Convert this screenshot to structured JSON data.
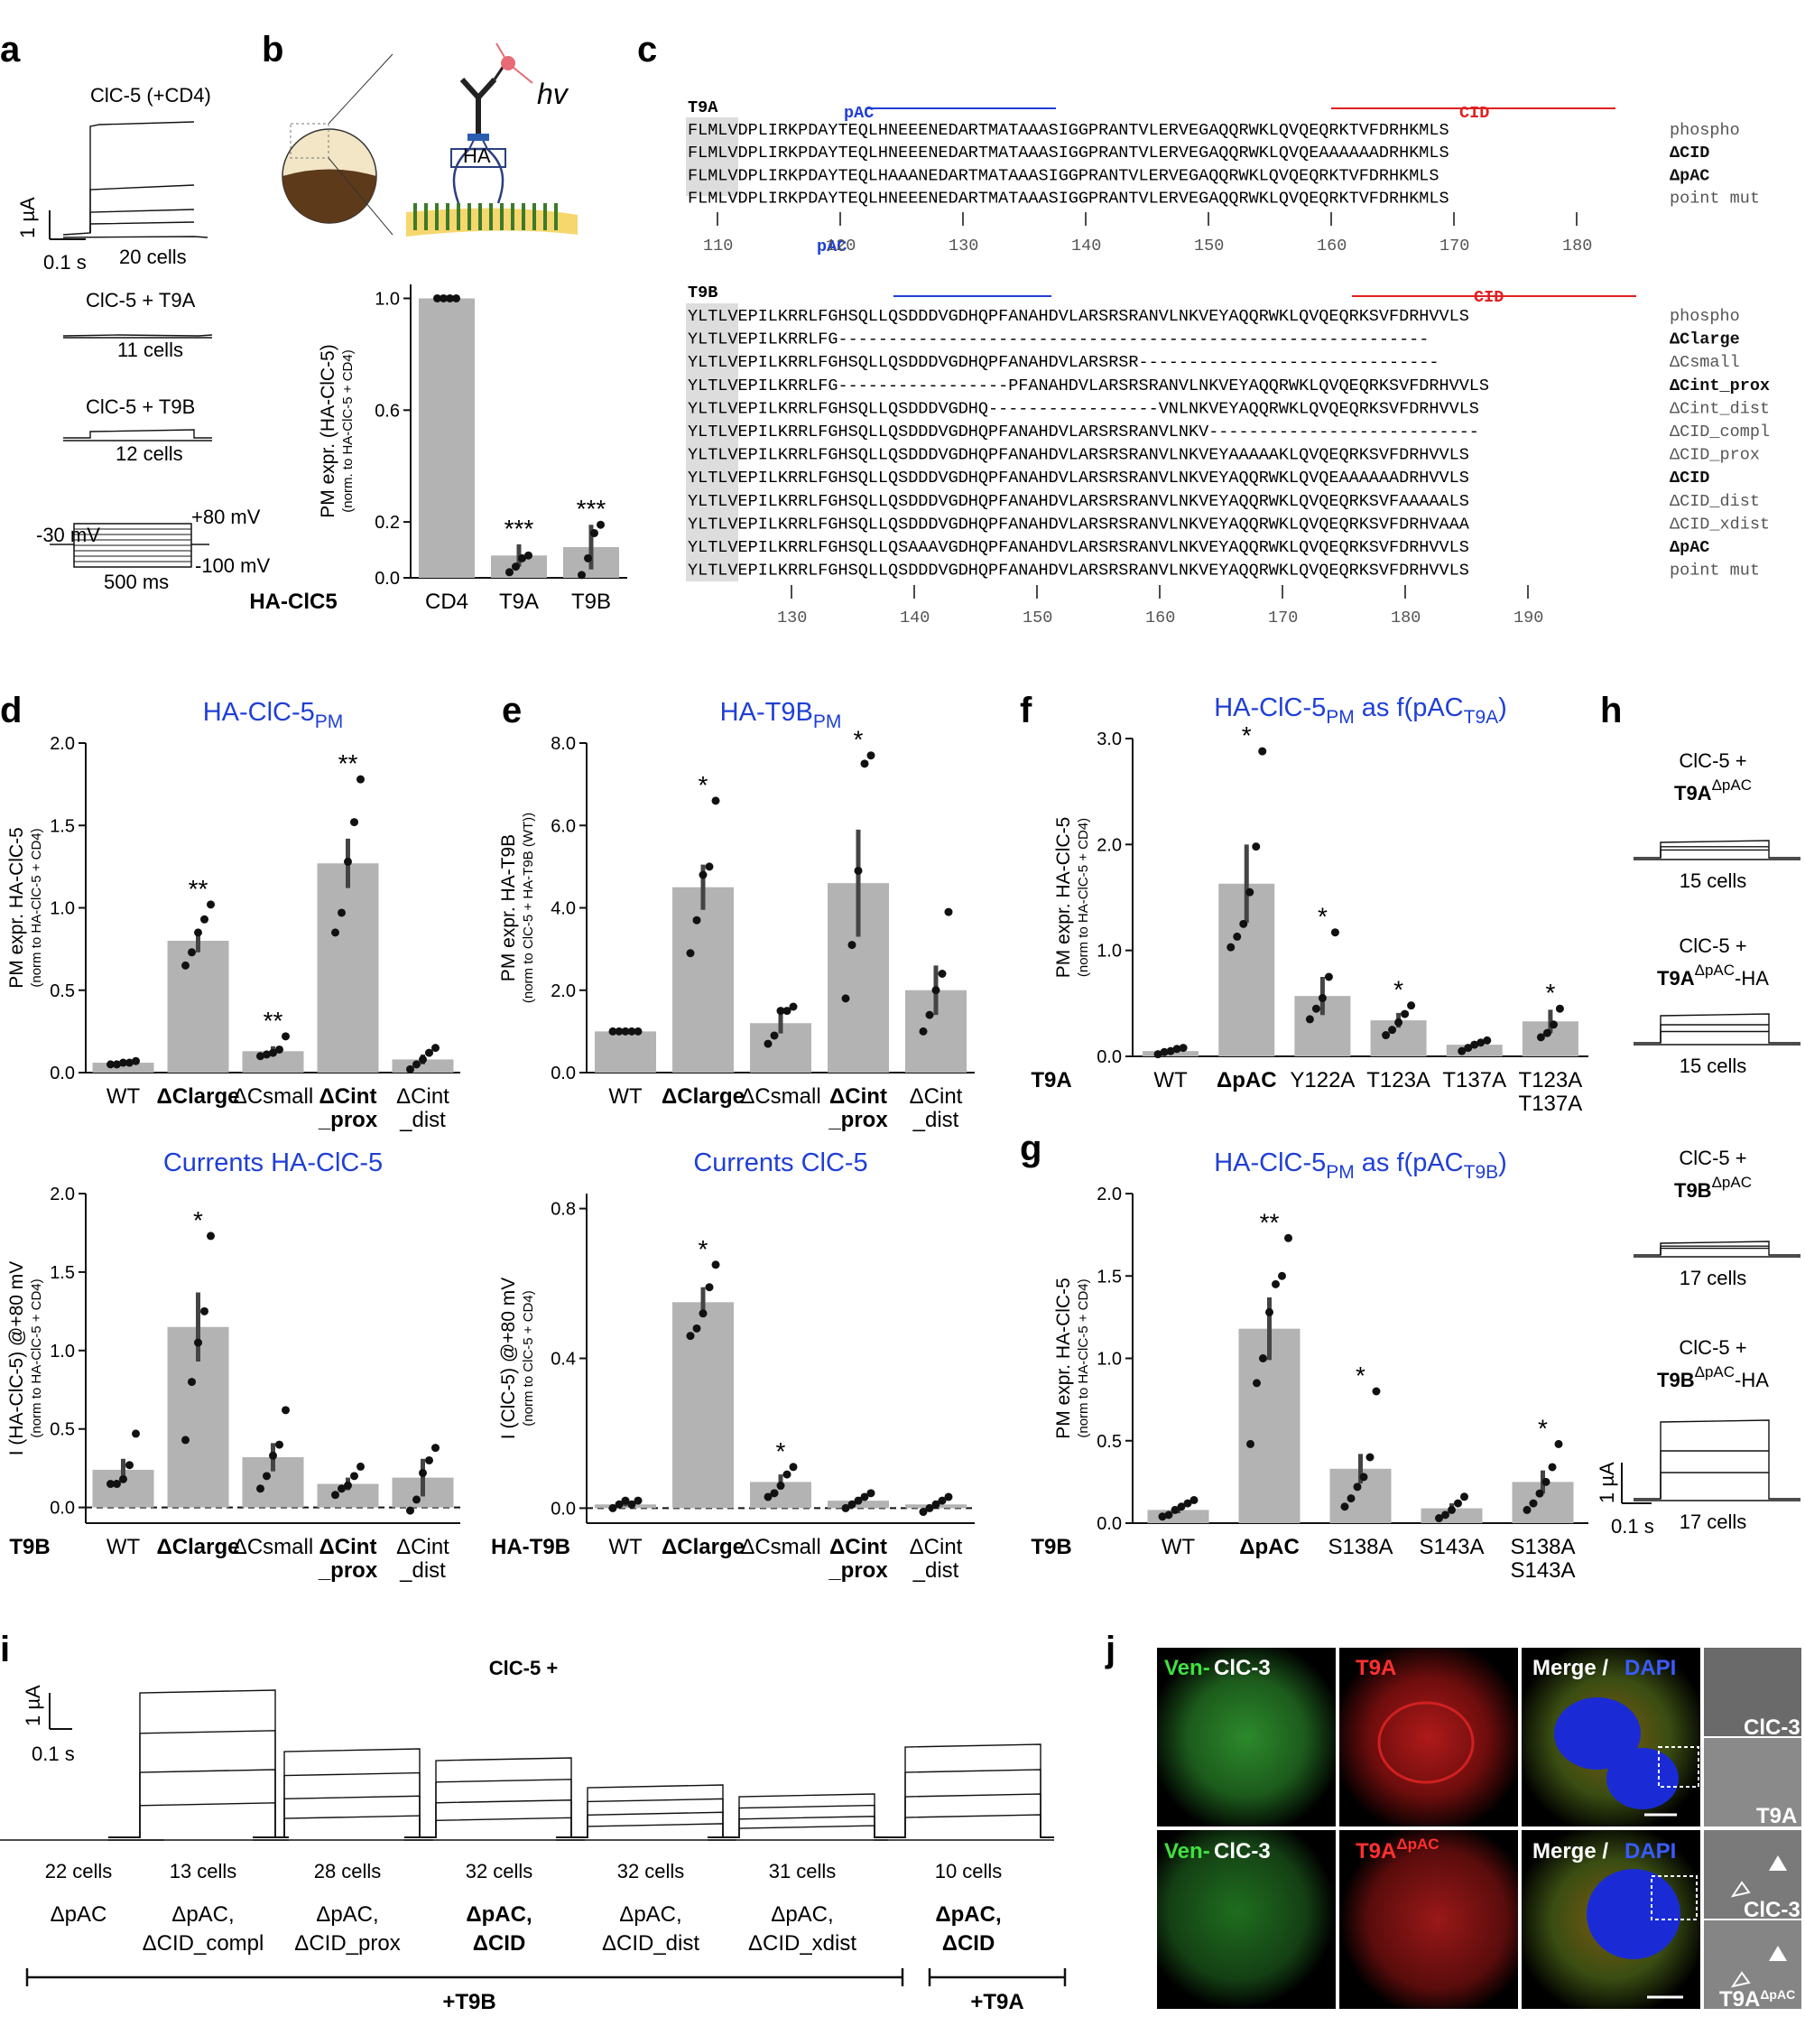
{
  "panel_labels": {
    "a": "a",
    "b": "b",
    "c": "c",
    "d": "d",
    "e": "e",
    "f": "f",
    "g": "g",
    "h": "h",
    "i": "i",
    "j": "j"
  },
  "panel_a": {
    "groups": [
      {
        "label": "ClC-5 (+CD4)",
        "cells": "20 cells"
      },
      {
        "label": "ClC-5 + T9A",
        "cells": "11 cells"
      },
      {
        "label": "ClC-5 + T9B",
        "cells": "12 cells"
      }
    ],
    "scale": {
      "y": "1 µA",
      "x": "0.1 s"
    },
    "protocol": {
      "hold": "-30 mV",
      "top": "+80 mV",
      "bottom": "-100 mV",
      "duration": "500 ms"
    }
  },
  "panel_b": {
    "schematic": {
      "tag": "HA",
      "light": "hv"
    }
  },
  "panel_c": {
    "t9a": {
      "name": "T9A",
      "pac": "pAC",
      "cid": "CID",
      "rows": [
        {
          "seq": "FLMLVDPLIRKPDAYTEQLHNEEENEDARTMATAAASIGGPRANTVLERVEGAQQRWKLQVQEQRKTVFDRHKMLS",
          "label": "phospho"
        },
        {
          "seq": "FLMLVDPLIRKPDAYTEQLHNEEENEDARTMATAAASIGGPRANTVLERVEGAQQRWKLQVQEAAAAAADRHKMLS",
          "label": "ΔCID"
        },
        {
          "seq": "FLMLVDPLIRKPDAYTEQLHAAANEDARTMATAAASIGGPRANTVLERVEGAQQRWKLQVQEQRKTVFDRHKMLS",
          "label": "ΔpAC"
        },
        {
          "seq": "FLMLVDPLIRKPDAYTEQLHNEEENEDARTMATAAASIGGPRANTVLERVEGAQQRWKLQVQEQRKTVFDRHKMLS",
          "label": "point mut"
        }
      ],
      "ticks": [
        "110",
        "120",
        "130",
        "140",
        "150",
        "160",
        "170",
        "180"
      ]
    },
    "t9b": {
      "name": "T9B",
      "pac": "pAC",
      "cid": "CID",
      "rows": [
        {
          "seq": "YLTLVEPILKRRLFGHSQLLQSDDDVGDHQPFANAHDVLARSRSRANVLNKVEYAQQRWKLQVQEQRKSVFDRHVVLS",
          "label": "phospho"
        },
        {
          "seq": "YLTLVEPILKRRLFG-----------------------------------------------------------",
          "label": "ΔClarge"
        },
        {
          "seq": "YLTLVEPILKRRLFGHSQLLQSDDDVGDHQPFANAHDVLARSRSR------------------------------",
          "label": "ΔCsmall"
        },
        {
          "seq": "YLTLVEPILKRRLFG-----------------PFANAHDVLARSRSRANVLNKVEYAQQRWKLQVQEQRKSVFDRHVVLS",
          "label": "ΔCint_prox"
        },
        {
          "seq": "YLTLVEPILKRRLFGHSQLLQSDDDVGDHQ-----------------VNLNKVEYAQQRWKLQVQEQRKSVFDRHVVLS",
          "label": "ΔCint_dist"
        },
        {
          "seq": "YLTLVEPILKRRLFGHSQLLQSDDDVGDHQPFANAHDVLARSRSRANVLNKV---------------------------",
          "label": "ΔCID_compl"
        },
        {
          "seq": "YLTLVEPILKRRLFGHSQLLQSDDDVGDHQPFANAHDVLARSRSRANVLNKVEYAAAAAKLQVQEQRKSVFDRHVVLS",
          "label": "ΔCID_prox"
        },
        {
          "seq": "YLTLVEPILKRRLFGHSQLLQSDDDVGDHQPFANAHDVLARSRSRANVLNKVEYAQQRWKLQVQEAAAAAADRHVVLS",
          "label": "ΔCID"
        },
        {
          "seq": "YLTLVEPILKRRLFGHSQLLQSDDDVGDHQPFANAHDVLARSRSRANVLNKVEYAQQRWKLQVQEQRKSVFAAAAALS",
          "label": "ΔCID_dist"
        },
        {
          "seq": "YLTLVEPILKRRLFGHSQLLQSDDDVGDHQPFANAHDVLARSRSRANVLNKVEYAQQRWKLQVQEQRKSVFDRHVAAA",
          "label": "ΔCID_xdist"
        },
        {
          "seq": "YLTLVEPILKRRLFGHSQLLQSAAAVGDHQPFANAHDVLARSRSRANVLNKVEYAQQRWKLQVQEQRKSVFDRHVVLS",
          "label": "ΔpAC"
        },
        {
          "seq": "YLTLVEPILKRRLFGHSQLLQSDDDVGDHQPFANAHDVLARSRSRANVLNKVEYAQQRWKLQVQEQRKSVFDRHVVLS",
          "label": "point mut"
        }
      ],
      "ticks": [
        "130",
        "140",
        "150",
        "160",
        "170",
        "180",
        "190"
      ]
    }
  },
  "panel_h": {
    "groups": [
      {
        "label_pre": "ClC-5 +",
        "label_t": "T9A",
        "label_sup": "ΔpAC",
        "label_suf": "",
        "cells": "15 cells"
      },
      {
        "label_pre": "ClC-5 +",
        "label_t": "T9A",
        "label_sup": "ΔpAC",
        "label_suf": "-HA",
        "cells": "15 cells"
      },
      {
        "label_pre": "ClC-5 +",
        "label_t": "T9B",
        "label_sup": "ΔpAC",
        "label_suf": "",
        "cells": "17 cells"
      },
      {
        "label_pre": "ClC-5 +",
        "label_t": "T9B",
        "label_sup": "ΔpAC",
        "label_suf": "-HA",
        "cells": "17 cells"
      }
    ],
    "scale": {
      "y": "1 µA",
      "x": "0.1 s"
    }
  },
  "panel_i": {
    "title": "ClC-5 +",
    "scale": {
      "y": "1 µA",
      "x": "0.1 s"
    },
    "groups": [
      {
        "cells": "22 cells",
        "line1": "ΔpAC",
        "line2": "",
        "bold": false
      },
      {
        "cells": "13 cells",
        "line1": "ΔpAC,",
        "line2": "ΔCID_compl",
        "bold": false
      },
      {
        "cells": "28 cells",
        "line1": "ΔpAC,",
        "line2": "ΔCID_prox",
        "bold": false
      },
      {
        "cells": "32 cells",
        "line1": "ΔpAC,",
        "line2": "ΔCID",
        "bold": true
      },
      {
        "cells": "32 cells",
        "line1": "ΔpAC,",
        "line2": "ΔCID_dist",
        "bold": false
      },
      {
        "cells": "31 cells",
        "line1": "ΔpAC,",
        "line2": "ΔCID_xdist",
        "bold": false
      },
      {
        "cells": "10 cells",
        "line1": "ΔpAC,",
        "line2": "ΔCID",
        "bold": true
      }
    ],
    "brackets": [
      "+T9B",
      "+T9A"
    ]
  },
  "panel_j": {
    "row1": {
      "c1a": "Ven-",
      "c1b": "ClC-3",
      "c2": "T9A",
      "c3a": "Merge / ",
      "c3b": "DAPI",
      "zoom1": "ClC-3",
      "zoom2": "T9A"
    },
    "row2": {
      "c1a": "Ven-",
      "c1b": "ClC-3",
      "c2": "T9A",
      "c2sup": "ΔpAC",
      "c3a": "Merge / ",
      "c3b": "DAPI",
      "zoom1": "ClC-3",
      "zoom2": "T9A",
      "zoom2sup": "ΔpAC"
    }
  },
  "chart_data": [
    {
      "id": "b",
      "type": "bar",
      "title": "",
      "xlabel": "HA-ClC5",
      "ylabel": "PM expr. (HA-ClC-5)",
      "ysub": "(norm. to HA-ClC-5 + CD4)",
      "categories": [
        "CD4",
        "T9A",
        "T9B"
      ],
      "values": [
        1.0,
        0.08,
        0.11
      ],
      "sem": [
        0,
        0.04,
        0.08
      ],
      "points": [
        [
          1,
          1,
          1,
          1
        ],
        [
          0.02,
          0.04,
          0.07,
          0.08
        ],
        [
          0.01,
          0.07,
          0.16,
          0.19
        ]
      ],
      "stars": [
        "",
        "***",
        "***"
      ],
      "ylim": [
        0,
        1.05
      ],
      "yticks": [
        "0.0",
        "0.2",
        "0.6",
        "1.0"
      ]
    },
    {
      "id": "d1",
      "type": "bar",
      "title": "HA-ClC-5",
      "title_sub": "PM",
      "ylabel": "PM expr. HA-ClC-5",
      "ysub": "(norm to HA-ClC-5 + CD4)",
      "categories": [
        "WT",
        "ΔClarge",
        "ΔCsmall",
        "ΔCint_prox",
        "ΔCint_dist"
      ],
      "values": [
        0.06,
        0.8,
        0.13,
        1.27,
        0.08
      ],
      "sem": [
        0.01,
        0.07,
        0.03,
        0.15,
        0.03
      ],
      "points": [
        [
          0.05,
          0.05,
          0.06,
          0.06,
          0.07
        ],
        [
          0.65,
          0.73,
          0.85,
          0.93,
          1.02
        ],
        [
          0.1,
          0.11,
          0.12,
          0.14,
          0.22
        ],
        [
          0.85,
          0.97,
          1.28,
          1.52,
          1.78
        ],
        [
          0.02,
          0.05,
          0.08,
          0.12,
          0.15
        ]
      ],
      "stars": [
        "",
        "**",
        "**",
        "**",
        ""
      ],
      "ylim": [
        0,
        2.0
      ],
      "yticks": [
        "0.0",
        "0.5",
        "1.0",
        "1.5",
        "2.0"
      ]
    },
    {
      "id": "d2",
      "type": "bar",
      "title": "Currents HA-ClC-5",
      "xlabel": "T9B",
      "ylabel": "I (HA-ClC-5) @+80 mV",
      "ysub": "(norm to HA-ClC-5 + CD4)",
      "categories": [
        "WT",
        "ΔClarge",
        "ΔCsmall",
        "ΔCint_prox",
        "ΔCint_dist"
      ],
      "values": [
        0.24,
        1.15,
        0.32,
        0.15,
        0.19
      ],
      "sem": [
        0.07,
        0.22,
        0.09,
        0.04,
        0.12
      ],
      "points": [
        [
          0.15,
          0.15,
          0.18,
          0.27,
          0.47
        ],
        [
          0.43,
          0.8,
          1.05,
          1.25,
          1.73
        ],
        [
          0.12,
          0.2,
          0.33,
          0.4,
          0.62
        ],
        [
          0.08,
          0.12,
          0.14,
          0.2,
          0.26
        ],
        [
          -0.02,
          0.05,
          0.22,
          0.3,
          0.38
        ]
      ],
      "stars": [
        "",
        "*",
        "",
        "",
        ""
      ],
      "ylim": [
        -0.1,
        2.0
      ],
      "yticks": [
        "0.0",
        "0.5",
        "1.0",
        "1.5",
        "2.0"
      ]
    },
    {
      "id": "e1",
      "type": "bar",
      "title": "HA-T9B",
      "title_sub": "PM",
      "ylabel": "PM expr. HA-T9B",
      "ysub": "(norm to ClC-5 + HA-T9B (WT))",
      "categories": [
        "WT",
        "ΔClarge",
        "ΔCsmall",
        "ΔCint_prox",
        "ΔCint_dist"
      ],
      "values": [
        1.0,
        4.5,
        1.2,
        4.6,
        2.0
      ],
      "sem": [
        0,
        0.55,
        0.25,
        1.3,
        0.6
      ],
      "points": [
        [
          1,
          1,
          1,
          1,
          1
        ],
        [
          2.9,
          3.7,
          4.8,
          5.0,
          6.6
        ],
        [
          0.7,
          0.9,
          1.5,
          1.5,
          1.6
        ],
        [
          1.8,
          3.1,
          4.9,
          7.5,
          7.7
        ],
        [
          1.0,
          1.4,
          2.0,
          2.4,
          3.9
        ]
      ],
      "stars": [
        "",
        "*",
        "",
        "*",
        ""
      ],
      "ylim": [
        0,
        8.0
      ],
      "yticks": [
        "0.0",
        "2.0",
        "4.0",
        "6.0",
        "8.0"
      ]
    },
    {
      "id": "e2",
      "type": "bar",
      "title": "Currents ClC-5",
      "xlabel": "HA-T9B",
      "ylabel": "I (ClC-5) @+80 mV",
      "ysub": "(norm to ClC-5 + CD4)",
      "categories": [
        "WT",
        "ΔClarge",
        "ΔCsmall",
        "ΔCint_prox",
        "ΔCint_dist"
      ],
      "values": [
        0.01,
        0.55,
        0.07,
        0.02,
        0.01
      ],
      "sem": [
        0.005,
        0.04,
        0.02,
        0.01,
        0.01
      ],
      "points": [
        [
          0,
          0.01,
          0.02,
          0.01,
          0.02
        ],
        [
          0.46,
          0.48,
          0.52,
          0.59,
          0.65
        ],
        [
          0.03,
          0.04,
          0.06,
          0.09,
          0.11
        ],
        [
          0,
          0.01,
          0.02,
          0.03,
          0.04
        ],
        [
          -0.01,
          0,
          0.01,
          0.02,
          0.03
        ]
      ],
      "stars": [
        "",
        "*",
        "*",
        "",
        ""
      ],
      "ylim": [
        -0.04,
        0.84
      ],
      "yticks": [
        "0.0",
        "0.4",
        "0.8"
      ]
    },
    {
      "id": "f",
      "type": "bar",
      "title": "HA-ClC-5",
      "title_sub": "PM",
      "title_suf": " as f(pAC",
      "title_sub2": "T9A",
      "title_end": ")",
      "xlabel": "T9A",
      "ylabel": "PM expr. HA-ClC-5",
      "ysub": "(norm to HA-ClC-5 + CD4)",
      "categories": [
        "WT",
        "ΔpAC",
        "Y122A",
        "T123A",
        "T137A",
        "T123A T137A"
      ],
      "values": [
        0.05,
        1.63,
        0.57,
        0.34,
        0.11,
        0.33
      ],
      "sem": [
        0.02,
        0.37,
        0.18,
        0.07,
        0.03,
        0.11
      ],
      "points": [
        [
          0.02,
          0.04,
          0.05,
          0.07,
          0.08
        ],
        [
          1.03,
          1.13,
          1.25,
          1.55,
          1.98,
          2.88
        ],
        [
          0.35,
          0.45,
          0.55,
          0.75,
          1.17
        ],
        [
          0.2,
          0.25,
          0.32,
          0.4,
          0.48
        ],
        [
          0.05,
          0.08,
          0.11,
          0.13,
          0.15
        ],
        [
          0.18,
          0.22,
          0.3,
          0.45
        ]
      ],
      "stars": [
        "",
        "*",
        "*",
        "*",
        "",
        "*"
      ],
      "ylim": [
        0,
        3.0
      ],
      "yticks": [
        "0.0",
        "1.0",
        "2.0",
        "3.0"
      ]
    },
    {
      "id": "g",
      "type": "bar",
      "title": "HA-ClC-5",
      "title_sub": "PM",
      "title_suf": " as f(pAC",
      "title_sub2": "T9B",
      "title_end": ")",
      "xlabel": "T9B",
      "ylabel": "PM expr. HA-ClC-5",
      "ysub": "(norm to HA-ClC-5 + CD4)",
      "categories": [
        "WT",
        "ΔpAC",
        "S138A",
        "S143A",
        "S138A S143A"
      ],
      "values": [
        0.08,
        1.18,
        0.33,
        0.09,
        0.25
      ],
      "sem": [
        0.02,
        0.19,
        0.09,
        0.03,
        0.07
      ],
      "points": [
        [
          0.04,
          0.05,
          0.08,
          0.1,
          0.12,
          0.14
        ],
        [
          0.48,
          0.85,
          1.0,
          1.28,
          1.45,
          1.5,
          1.73
        ],
        [
          0.1,
          0.15,
          0.22,
          0.28,
          0.4,
          0.8
        ],
        [
          0.03,
          0.05,
          0.08,
          0.12,
          0.16
        ],
        [
          0.08,
          0.12,
          0.18,
          0.25,
          0.34,
          0.48
        ]
      ],
      "stars": [
        "",
        "**",
        "*",
        "",
        "*"
      ],
      "ylim": [
        0,
        2.0
      ],
      "yticks": [
        "0.0",
        "0.5",
        "1.0",
        "1.5",
        "2.0"
      ]
    }
  ]
}
